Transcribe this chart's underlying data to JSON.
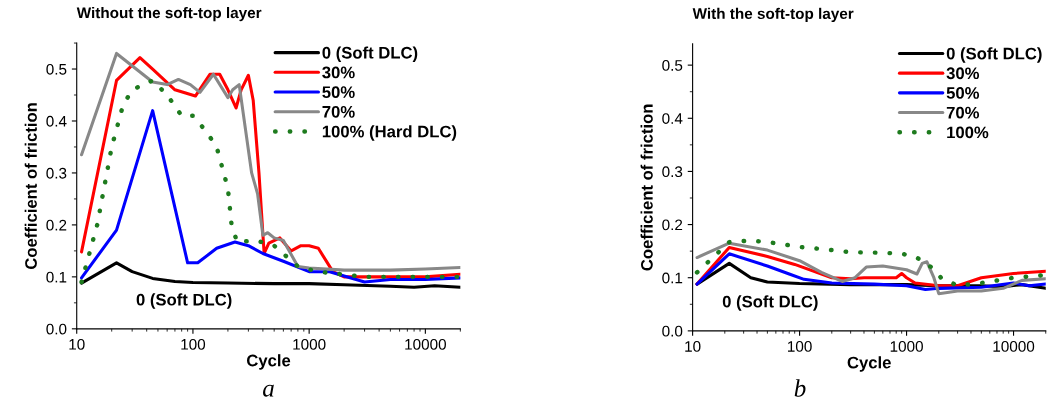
{
  "chart_data": [
    {
      "type": "line",
      "title": "Without the soft-top layer",
      "xlabel": "Cycle",
      "ylabel": "Coefficient of friction",
      "log": "x",
      "xlim": [
        10,
        20000
      ],
      "xticks": [
        10,
        100,
        1000,
        10000
      ],
      "ylim": [
        0,
        0.55
      ],
      "yticks": [
        {
          "value": 0,
          "label": "0.0"
        },
        0.1,
        0.2,
        0.3,
        0.4,
        0.5
      ],
      "grid": false,
      "legend": "top right",
      "marker": "none",
      "annotations": [
        "0 (Soft DLC)",
        "a"
      ],
      "series": [
        {
          "name": "0 (Soft DLC)",
          "color": "#000000",
          "line_style": "solid",
          "x": [
            11,
            22,
            30,
            45,
            70,
            100,
            200,
            500,
            1000,
            2000,
            5000,
            8000,
            12000,
            20000
          ],
          "values": [
            0.088,
            0.127,
            0.11,
            0.097,
            0.091,
            0.089,
            0.088,
            0.087,
            0.087,
            0.085,
            0.082,
            0.08,
            0.083,
            0.08
          ]
        },
        {
          "name": "30%",
          "color": "#ff0000",
          "line_style": "solid",
          "x": [
            11,
            22,
            35,
            45,
            70,
            105,
            140,
            170,
            200,
            235,
            260,
            300,
            330,
            370,
            410,
            450,
            560,
            700,
            850,
            1000,
            1200,
            1600,
            2000,
            5000,
            10000,
            20000
          ],
          "values": [
            0.148,
            0.478,
            0.522,
            0.5,
            0.46,
            0.448,
            0.49,
            0.49,
            0.46,
            0.425,
            0.46,
            0.488,
            0.44,
            0.3,
            0.145,
            0.165,
            0.175,
            0.15,
            0.16,
            0.16,
            0.155,
            0.11,
            0.1,
            0.1,
            0.1,
            0.105
          ]
        },
        {
          "name": "50%",
          "color": "#0000ff",
          "line_style": "solid",
          "x": [
            11,
            22,
            45,
            90,
            110,
            160,
            230,
            300,
            400,
            600,
            1000,
            1500,
            3000,
            5000,
            10000,
            20000
          ],
          "values": [
            0.098,
            0.19,
            0.42,
            0.127,
            0.127,
            0.155,
            0.167,
            0.16,
            0.145,
            0.13,
            0.11,
            0.11,
            0.09,
            0.095,
            0.095,
            0.098
          ]
        },
        {
          "name": "70%",
          "color": "#888888",
          "line_style": "solid",
          "x": [
            11,
            22,
            45,
            60,
            75,
            95,
            115,
            150,
            200,
            220,
            250,
            320,
            360,
            400,
            440,
            500,
            600,
            800,
            1000,
            2000,
            5000,
            10000,
            20000
          ],
          "values": [
            0.335,
            0.53,
            0.475,
            0.47,
            0.48,
            0.47,
            0.455,
            0.49,
            0.445,
            0.46,
            0.47,
            0.3,
            0.26,
            0.18,
            0.185,
            0.175,
            0.17,
            0.12,
            0.117,
            0.113,
            0.113,
            0.115,
            0.118
          ]
        },
        {
          "name": "100% (Hard DLC)",
          "color": "#1e7b1e",
          "line_style": "dotted",
          "x": [
            11,
            15,
            20,
            25,
            30,
            45,
            60,
            80,
            100,
            130,
            160,
            200,
            215,
            240,
            350,
            500,
            800,
            1200,
            3000,
            20000
          ],
          "values": [
            0.09,
            0.2,
            0.35,
            0.43,
            0.46,
            0.478,
            0.45,
            0.41,
            0.41,
            0.38,
            0.35,
            0.27,
            0.2,
            0.167,
            0.17,
            0.16,
            0.12,
            0.11,
            0.1,
            0.1
          ]
        }
      ]
    },
    {
      "type": "line",
      "title": "With the soft-top layer",
      "xlabel": "Cycle",
      "ylabel": "Coefficient of friction",
      "log": "x",
      "xlim": [
        10,
        20000
      ],
      "xticks": [
        10,
        100,
        1000,
        10000
      ],
      "ylim": [
        0,
        0.54
      ],
      "yticks": [
        {
          "value": 0,
          "label": "0.0"
        },
        0.1,
        0.2,
        0.3,
        0.4,
        0.5
      ],
      "grid": false,
      "legend": "top right",
      "marker": "none",
      "annotations": [
        "0 (Soft DLC)",
        "b"
      ],
      "series": [
        {
          "name": "0 (Soft DLC)",
          "color": "#000000",
          "line_style": "solid",
          "x": [
            11,
            22,
            35,
            50,
            100,
            300,
            1000,
            2000,
            5000,
            8000,
            12000,
            20000
          ],
          "values": [
            0.088,
            0.127,
            0.1,
            0.092,
            0.089,
            0.087,
            0.087,
            0.085,
            0.085,
            0.083,
            0.087,
            0.08
          ]
        },
        {
          "name": "30%",
          "color": "#ff0000",
          "line_style": "solid",
          "x": [
            11,
            22,
            50,
            90,
            200,
            300,
            400,
            800,
            900,
            1000,
            1200,
            2000,
            3000,
            5000,
            10000,
            20000
          ],
          "values": [
            0.088,
            0.157,
            0.14,
            0.125,
            0.1,
            0.098,
            0.1,
            0.1,
            0.108,
            0.1,
            0.09,
            0.085,
            0.085,
            0.1,
            0.108,
            0.112
          ]
        },
        {
          "name": "50%",
          "color": "#0000ff",
          "line_style": "solid",
          "x": [
            11,
            22,
            50,
            80,
            110,
            200,
            500,
            1000,
            1500,
            2000,
            5000,
            10000,
            14000,
            20000
          ],
          "values": [
            0.088,
            0.145,
            0.122,
            0.107,
            0.097,
            0.09,
            0.088,
            0.085,
            0.078,
            0.08,
            0.082,
            0.09,
            0.085,
            0.088
          ]
        },
        {
          "name": "70%",
          "color": "#888888",
          "line_style": "solid",
          "x": [
            11,
            22,
            50,
            100,
            160,
            250,
            330,
            420,
            600,
            1000,
            1250,
            1400,
            1550,
            1800,
            2000,
            3000,
            5000,
            8000,
            12000,
            20000
          ],
          "values": [
            0.138,
            0.165,
            0.152,
            0.132,
            0.11,
            0.093,
            0.1,
            0.12,
            0.122,
            0.115,
            0.107,
            0.127,
            0.13,
            0.1,
            0.07,
            0.075,
            0.075,
            0.08,
            0.095,
            0.098
          ]
        },
        {
          "name": "100%",
          "color": "#1e7b1e",
          "line_style": "dotted",
          "x": [
            11,
            22,
            35,
            60,
            100,
            200,
            300,
            600,
            900,
            1200,
            1700,
            2100,
            3000,
            5000,
            10000,
            20000
          ],
          "values": [
            0.11,
            0.167,
            0.17,
            0.165,
            0.158,
            0.152,
            0.148,
            0.147,
            0.145,
            0.14,
            0.12,
            0.1,
            0.085,
            0.09,
            0.1,
            0.105
          ]
        }
      ]
    }
  ]
}
